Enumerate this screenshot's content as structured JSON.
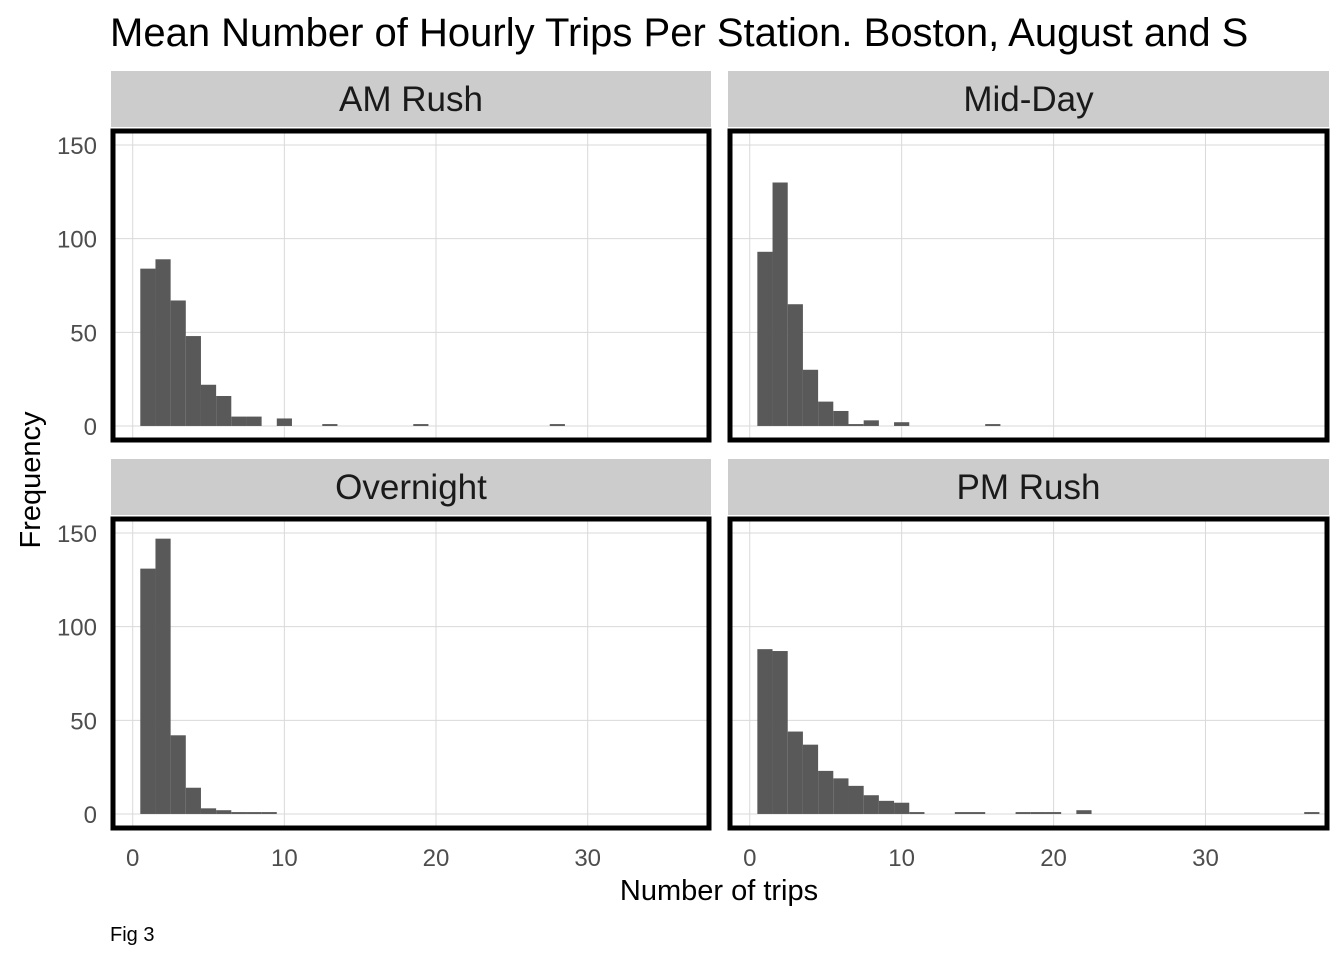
{
  "chart_data": {
    "type": "bar",
    "title": "Mean Number of Hourly Trips Per Station. Boston, August and S",
    "xlabel": "Number of trips",
    "ylabel": "Frequency",
    "caption": "Fig 3",
    "xlim": [
      -1.3,
      38.0
    ],
    "ylim": [
      -7.5,
      157.5
    ],
    "x_ticks": [
      0,
      10,
      20,
      30
    ],
    "y_ticks": [
      0,
      50,
      100,
      150
    ],
    "binwidth": 1,
    "grid": true,
    "bar_color": "#595959",
    "panel_border_color": "#000000",
    "strip_fill": "#cccccc",
    "grid_color": "#d9d9d9",
    "panels": [
      {
        "name": "AM Rush",
        "bins": [
          {
            "x": 1,
            "y": 84
          },
          {
            "x": 2,
            "y": 89
          },
          {
            "x": 3,
            "y": 67
          },
          {
            "x": 4,
            "y": 48
          },
          {
            "x": 5,
            "y": 22
          },
          {
            "x": 6,
            "y": 16
          },
          {
            "x": 7,
            "y": 5
          },
          {
            "x": 8,
            "y": 5
          },
          {
            "x": 10,
            "y": 4
          },
          {
            "x": 13,
            "y": 1
          },
          {
            "x": 19,
            "y": 1
          },
          {
            "x": 28,
            "y": 1
          }
        ]
      },
      {
        "name": "Mid-Day",
        "bins": [
          {
            "x": 1,
            "y": 93
          },
          {
            "x": 2,
            "y": 130
          },
          {
            "x": 3,
            "y": 65
          },
          {
            "x": 4,
            "y": 30
          },
          {
            "x": 5,
            "y": 13
          },
          {
            "x": 6,
            "y": 8
          },
          {
            "x": 7,
            "y": 1
          },
          {
            "x": 8,
            "y": 3
          },
          {
            "x": 10,
            "y": 2
          },
          {
            "x": 16,
            "y": 1
          }
        ]
      },
      {
        "name": "Overnight",
        "bins": [
          {
            "x": 1,
            "y": 131
          },
          {
            "x": 2,
            "y": 147
          },
          {
            "x": 3,
            "y": 42
          },
          {
            "x": 4,
            "y": 14
          },
          {
            "x": 5,
            "y": 3
          },
          {
            "x": 6,
            "y": 2
          },
          {
            "x": 7,
            "y": 1
          },
          {
            "x": 8,
            "y": 1
          },
          {
            "x": 9,
            "y": 1
          }
        ]
      },
      {
        "name": "PM Rush",
        "bins": [
          {
            "x": 1,
            "y": 88
          },
          {
            "x": 2,
            "y": 87
          },
          {
            "x": 3,
            "y": 44
          },
          {
            "x": 4,
            "y": 37
          },
          {
            "x": 5,
            "y": 23
          },
          {
            "x": 6,
            "y": 19
          },
          {
            "x": 7,
            "y": 15
          },
          {
            "x": 8,
            "y": 10
          },
          {
            "x": 9,
            "y": 7
          },
          {
            "x": 10,
            "y": 6
          },
          {
            "x": 11,
            "y": 1
          },
          {
            "x": 14,
            "y": 1
          },
          {
            "x": 15,
            "y": 1
          },
          {
            "x": 18,
            "y": 1
          },
          {
            "x": 19,
            "y": 1
          },
          {
            "x": 20,
            "y": 1
          },
          {
            "x": 22,
            "y": 2
          },
          {
            "x": 37,
            "y": 1
          }
        ]
      }
    ]
  }
}
